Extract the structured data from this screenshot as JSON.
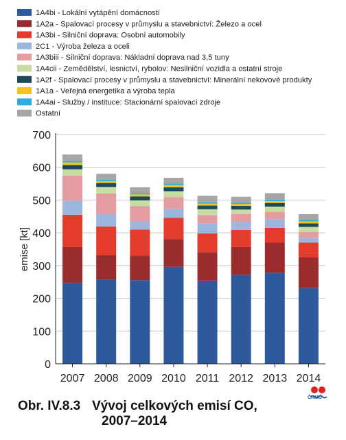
{
  "chart_data": {
    "type": "bar",
    "stacked": true,
    "categories": [
      "2007",
      "2008",
      "2009",
      "2010",
      "2011",
      "2012",
      "2013",
      "2014"
    ],
    "ylabel": "emise [kt]",
    "ylim": [
      0,
      700
    ],
    "yticks": [
      0,
      100,
      200,
      300,
      400,
      500,
      600,
      700
    ],
    "legend_position": "top-left",
    "series": [
      {
        "name": "1A4bi - Lokální vytápění domácností",
        "color": "#2e5a9c",
        "values": [
          247,
          257,
          255,
          296,
          254,
          272,
          278,
          232
        ]
      },
      {
        "name": "1A2a - Spalovací procesy v průmyslu a stavebnictví: Železo a ocel",
        "color": "#9b2c2e",
        "values": [
          110,
          75,
          75,
          85,
          87,
          85,
          92,
          93
        ]
      },
      {
        "name": "1A3bi - Silniční doprava: Osobní automobily",
        "color": "#e33b2c",
        "values": [
          98,
          87,
          80,
          65,
          57,
          52,
          45,
          45
        ]
      },
      {
        "name": "2C1 - Výroba železa a oceli",
        "color": "#9cb6de",
        "values": [
          43,
          37,
          25,
          28,
          30,
          24,
          27,
          15
        ]
      },
      {
        "name": "1A3biii - Silniční doprava: Nákladní doprava nad 3,5 tuny",
        "color": "#e39da0",
        "values": [
          77,
          64,
          46,
          35,
          26,
          24,
          22,
          18
        ]
      },
      {
        "name": "1A4cii - Zemědělství, lesnictví, rybolov: Nesilniční vozidla a ostatní stroje",
        "color": "#c6dca0",
        "values": [
          19,
          20,
          18,
          18,
          18,
          14,
          16,
          15
        ]
      },
      {
        "name": "1A2f - Spalovací procesy v průmyslu a stavebnictví: Minerální nekovové produkty",
        "color": "#1d4a57",
        "values": [
          13,
          12,
          12,
          12,
          11,
          11,
          11,
          11
        ]
      },
      {
        "name": "1A1a - Veřejná energetika a výroba tepla",
        "color": "#f7c31b",
        "values": [
          8,
          6,
          6,
          7,
          6,
          6,
          6,
          6
        ]
      },
      {
        "name": "1A4ai - Služby / instituce: Stacionární spalovací zdroje",
        "color": "#2bace2",
        "values": [
          4,
          4,
          4,
          4,
          4,
          4,
          4,
          4
        ]
      },
      {
        "name": "Ostatní",
        "color": "#a6a6a6",
        "values": [
          20,
          18,
          18,
          18,
          20,
          18,
          20,
          18
        ]
      }
    ]
  },
  "caption": {
    "number": "Obr. IV.8.3",
    "title_line1": "Vývoj celkových emisí CO,",
    "title_line2": "2007–2014"
  },
  "logo": {
    "text": "ČHMÚ"
  }
}
